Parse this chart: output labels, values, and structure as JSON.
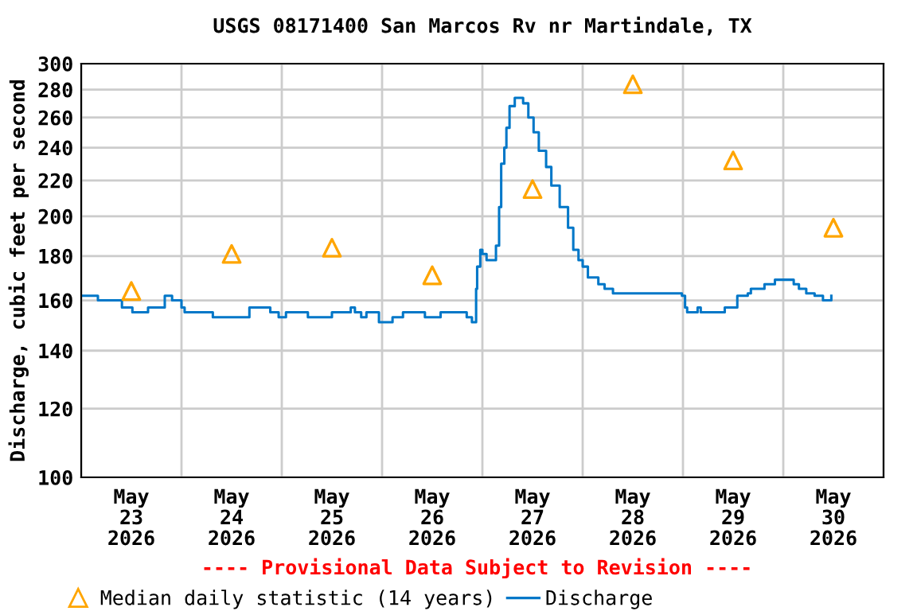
{
  "chart_data": {
    "type": "step",
    "title": "USGS 08171400 San Marcos Rv nr Martindale, TX",
    "ylabel": "Discharge, cubic feet per second",
    "annotations": [
      "---- Provisional Data Subject to Revision ----"
    ],
    "log": true,
    "grid": true,
    "legend": "bottom",
    "xlim": [
      "2026-05-23T00:00",
      "2026-05-31T00:00"
    ],
    "xticks": [
      {
        "value": "2026-05-23T00:00",
        "label": null
      },
      {
        "value": "2026-05-23T12:00",
        "label": "May\n23\n2026"
      },
      {
        "value": "2026-05-24T00:00",
        "label": null
      },
      {
        "value": "2026-05-24T12:00",
        "label": "May\n24\n2026"
      },
      {
        "value": "2026-05-25T00:00",
        "label": null
      },
      {
        "value": "2026-05-25T12:00",
        "label": "May\n25\n2026"
      },
      {
        "value": "2026-05-26T00:00",
        "label": null
      },
      {
        "value": "2026-05-26T12:00",
        "label": "May\n26\n2026"
      },
      {
        "value": "2026-05-27T00:00",
        "label": null
      },
      {
        "value": "2026-05-27T12:00",
        "label": "May\n27\n2026"
      },
      {
        "value": "2026-05-28T00:00",
        "label": null
      },
      {
        "value": "2026-05-28T12:00",
        "label": "May\n28\n2026"
      },
      {
        "value": "2026-05-29T00:00",
        "label": null
      },
      {
        "value": "2026-05-29T12:00",
        "label": "May\n29\n2026"
      },
      {
        "value": "2026-05-30T00:00",
        "label": null
      },
      {
        "value": "2026-05-30T12:00",
        "label": "May\n30\n2026"
      },
      {
        "value": "2026-05-31T00:00",
        "label": null
      }
    ],
    "ylim": [
      100,
      300
    ],
    "yticks": [
      100,
      120,
      140,
      160,
      180,
      200,
      220,
      240,
      260,
      280,
      300
    ],
    "series": [
      {
        "name": "Median daily statistic (14 years)",
        "type": "scatter",
        "marker": "triangle",
        "color": "#ffa500",
        "x": [
          "2026-05-23T12:00",
          "2026-05-24T12:00",
          "2026-05-25T12:00",
          "2026-05-26T12:00",
          "2026-05-27T12:00",
          "2026-05-28T12:00",
          "2026-05-29T12:00",
          "2026-05-30T12:00"
        ],
        "values": [
          164,
          181,
          184,
          171,
          215,
          284,
          232,
          194
        ]
      },
      {
        "name": "Discharge",
        "color": "#0077c8",
        "x": [
          "2026-05-23T00:00",
          "2026-05-23T04:00",
          "2026-05-23T09:45",
          "2026-05-23T12:15",
          "2026-05-23T16:00",
          "2026-05-23T20:00",
          "2026-05-23T21:45",
          "2026-05-24T00:00",
          "2026-05-24T00:45",
          "2026-05-24T07:30",
          "2026-05-24T16:15",
          "2026-05-24T21:15",
          "2026-05-24T23:15",
          "2026-05-25T01:00",
          "2026-05-25T06:15",
          "2026-05-25T12:00",
          "2026-05-25T16:30",
          "2026-05-25T17:30",
          "2026-05-25T19:00",
          "2026-05-25T20:15",
          "2026-05-25T23:15",
          "2026-05-26T02:30",
          "2026-05-26T05:00",
          "2026-05-26T10:15",
          "2026-05-26T14:00",
          "2026-05-26T20:15",
          "2026-05-26T21:30",
          "2026-05-26T22:30",
          "2026-05-26T22:45",
          "2026-05-26T23:30",
          "2026-05-27T00:00",
          "2026-05-27T01:00",
          "2026-05-27T03:15",
          "2026-05-27T04:00",
          "2026-05-27T04:30",
          "2026-05-27T05:15",
          "2026-05-27T05:45",
          "2026-05-27T06:30",
          "2026-05-27T07:45",
          "2026-05-27T09:45",
          "2026-05-27T11:00",
          "2026-05-27T12:15",
          "2026-05-27T13:30",
          "2026-05-27T15:15",
          "2026-05-27T16:30",
          "2026-05-27T18:30",
          "2026-05-27T20:30",
          "2026-05-27T21:45",
          "2026-05-27T23:00",
          "2026-05-28T00:00",
          "2026-05-28T01:15",
          "2026-05-28T03:45",
          "2026-05-28T05:15",
          "2026-05-28T07:15",
          "2026-05-28T23:45",
          "2026-05-29T00:30",
          "2026-05-29T01:00",
          "2026-05-29T03:00",
          "2026-05-29T03:30",
          "2026-05-29T04:15",
          "2026-05-29T10:00",
          "2026-05-29T13:00",
          "2026-05-29T15:30",
          "2026-05-29T16:15",
          "2026-05-29T19:30",
          "2026-05-29T22:00",
          "2026-05-30T02:30",
          "2026-05-30T03:45",
          "2026-05-30T05:30",
          "2026-05-30T07:30",
          "2026-05-30T09:30",
          "2026-05-30T11:30"
        ],
        "values": [
          162,
          160,
          157,
          155,
          157,
          162,
          160,
          157,
          155,
          153,
          157,
          155,
          153,
          155,
          153,
          155,
          157,
          155,
          153,
          155,
          151,
          153,
          155,
          153,
          155,
          153,
          151,
          165,
          175,
          183,
          181,
          178,
          185,
          205,
          230,
          240,
          253,
          268,
          274,
          270,
          260,
          250,
          238,
          228,
          217,
          205,
          194,
          183,
          178,
          175,
          170,
          167,
          165,
          163,
          162,
          157,
          155,
          155,
          157,
          155,
          157,
          162,
          163,
          165,
          167,
          169,
          167,
          165,
          163,
          162,
          160,
          162
        ]
      }
    ]
  }
}
